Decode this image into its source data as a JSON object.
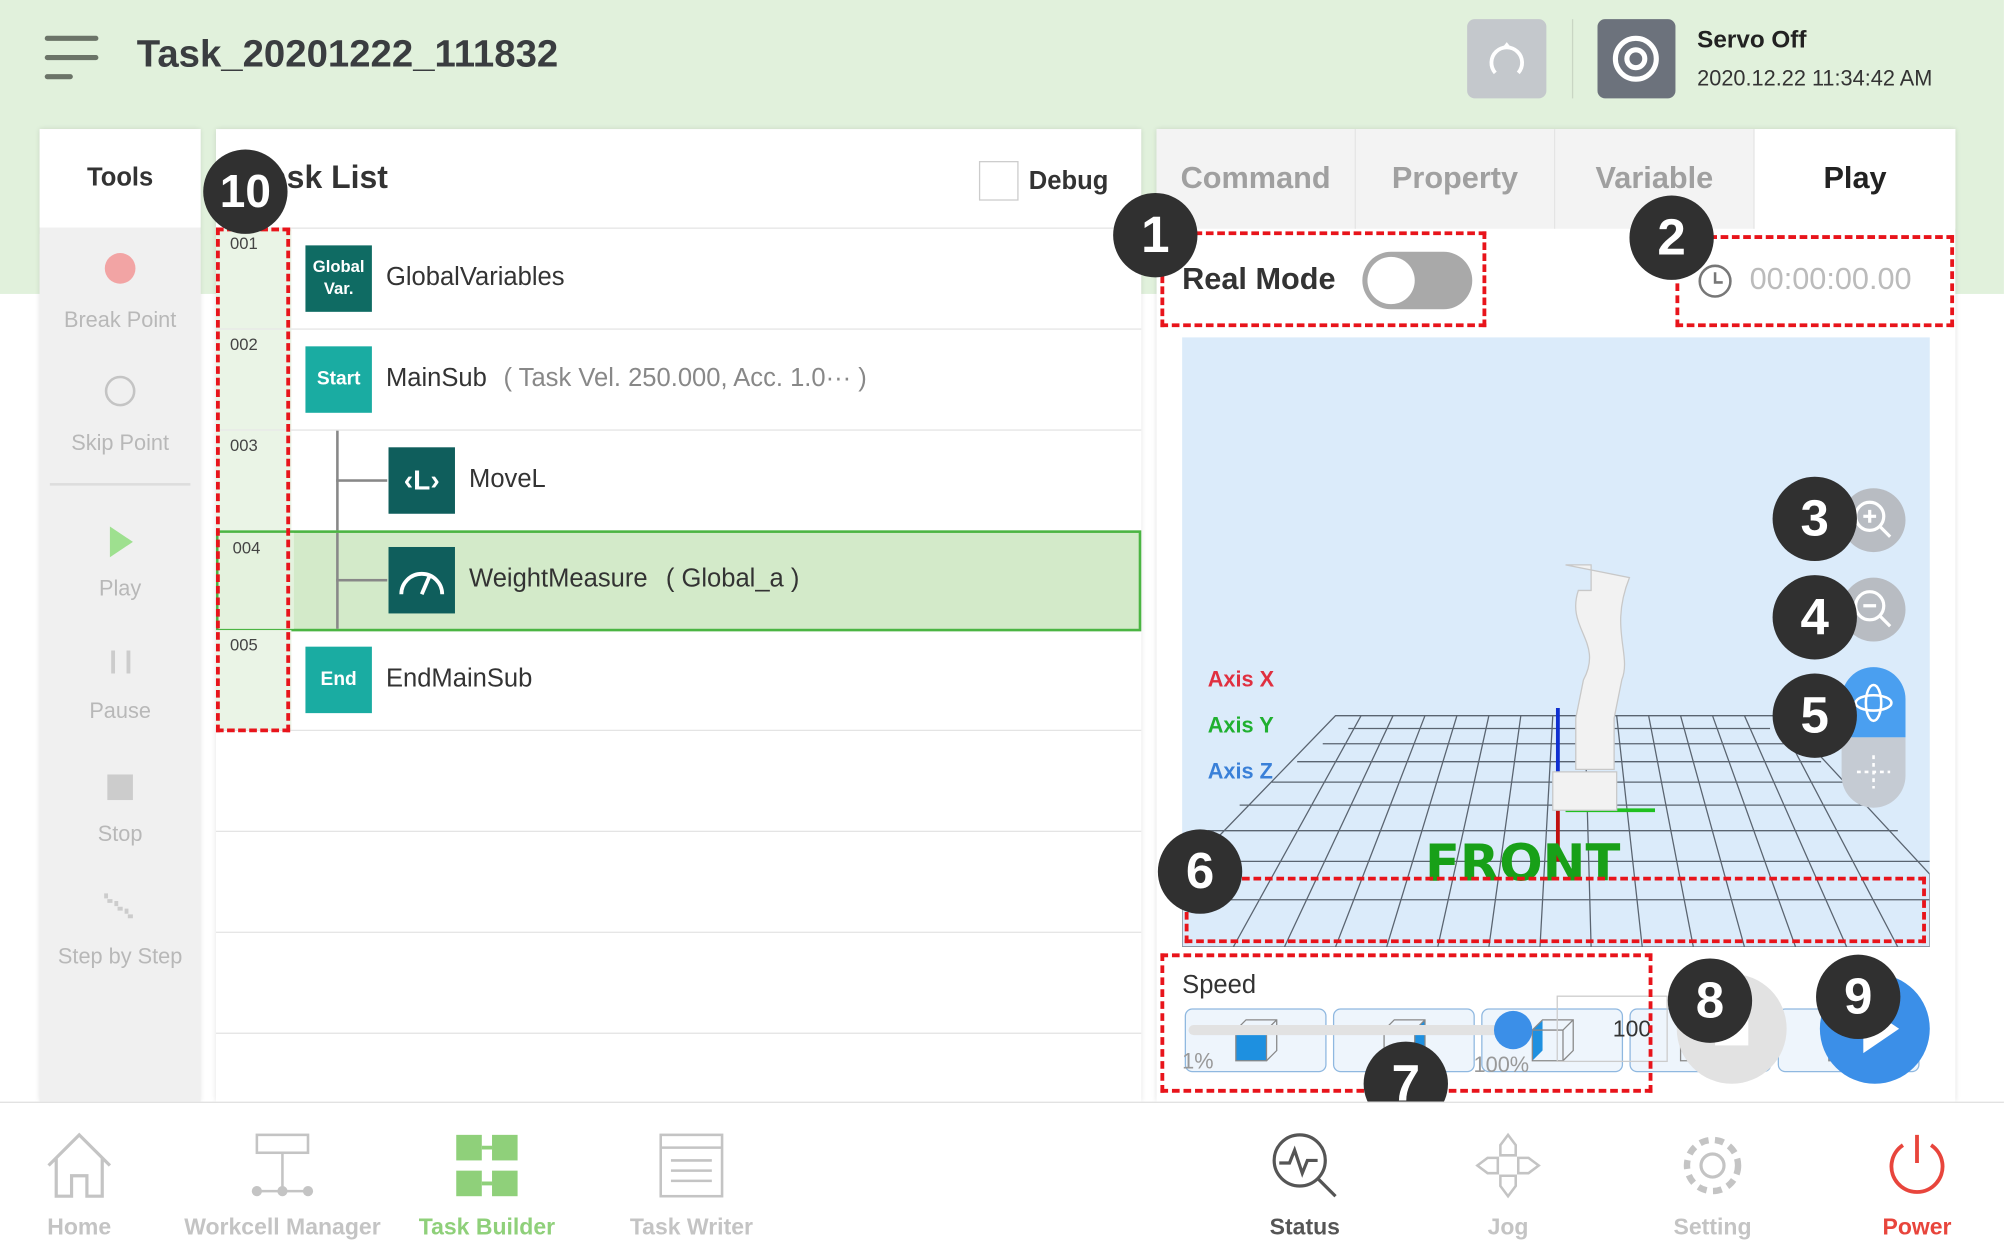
{
  "header": {
    "title": "Task_20201222_111832",
    "servo_status": "Servo Off",
    "datetime": "2020.12.22 11:34:42 AM"
  },
  "tools": {
    "title": "Tools",
    "items": [
      {
        "label": "Break Point",
        "icon": "record-dot-icon"
      },
      {
        "label": "Skip Point",
        "icon": "circle-icon"
      },
      {
        "label": "Play",
        "icon": "play-icon"
      },
      {
        "label": "Pause",
        "icon": "pause-icon"
      },
      {
        "label": "Stop",
        "icon": "stop-icon"
      },
      {
        "label": "Step by Step",
        "icon": "step-icon"
      }
    ]
  },
  "task_list": {
    "title": "Task List",
    "debug_label": "Debug",
    "debug_checked": false,
    "rows": [
      {
        "num": "001",
        "icon_label": "Global Var.",
        "name": "GlobalVariables",
        "detail": ""
      },
      {
        "num": "002",
        "icon_label": "Start",
        "name": "MainSub",
        "detail": "( Task Vel. 250.000, Acc. 1.0··· )"
      },
      {
        "num": "003",
        "icon_label": "",
        "name": "MoveL",
        "detail": ""
      },
      {
        "num": "004",
        "icon_label": "",
        "name": "WeightMeasure",
        "detail": "( Global_a )",
        "selected": true
      },
      {
        "num": "005",
        "icon_label": "End",
        "name": "EndMainSub",
        "detail": ""
      }
    ]
  },
  "right_panel": {
    "tabs": [
      "Command",
      "Property",
      "Variable",
      "Play"
    ],
    "active_tab": "Play",
    "real_mode_label": "Real Mode",
    "real_mode_on": false,
    "timer": "00:00:00.00",
    "axis_labels": {
      "x": "Axis X",
      "y": "Axis Y",
      "z": "Axis Z"
    },
    "front_label": "FRONT",
    "speed": {
      "label": "Speed",
      "min_label": "1%",
      "max_label": "100%",
      "value": "100",
      "percent": 100
    }
  },
  "annotations": [
    "1",
    "2",
    "3",
    "4",
    "5",
    "6",
    "7",
    "8",
    "9",
    "10"
  ],
  "bottom_nav": [
    {
      "label": "Home"
    },
    {
      "label": "Workcell Manager"
    },
    {
      "label": "Task Builder",
      "active": true
    },
    {
      "label": "Task Writer"
    },
    {
      "label": "Status"
    },
    {
      "label": "Jog"
    },
    {
      "label": "Setting"
    },
    {
      "label": "Power"
    }
  ],
  "colors": {
    "header_bg": "#e1f1dc",
    "accent_green": "#8fd07a",
    "teal": "#0f6b63",
    "blue": "#3b8fe8",
    "power_red": "#e8453c"
  }
}
